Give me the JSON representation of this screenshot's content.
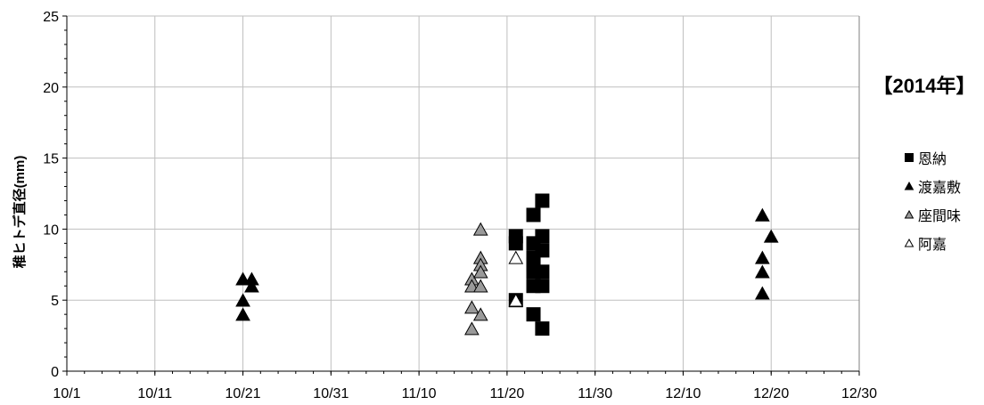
{
  "chart_data": {
    "type": "scatter",
    "title": "【2014年】",
    "ylabel": "稚ヒトデ直径(mm)",
    "xlabel": "",
    "x_axis_type": "date",
    "x_year": 2014,
    "xlim": [
      "10/1",
      "12/30"
    ],
    "ylim": [
      0,
      25
    ],
    "x_ticks": [
      "10/1",
      "10/11",
      "10/21",
      "10/31",
      "11/10",
      "11/20",
      "11/30",
      "12/10",
      "12/20",
      "12/30"
    ],
    "y_ticks": [
      "0",
      "5",
      "10",
      "15",
      "20",
      "25"
    ],
    "grid": true,
    "legend_position": "right",
    "series": [
      {
        "name": "恩納",
        "marker": "square",
        "color": "#000000",
        "stroke": "#000000",
        "points": [
          {
            "x": "11/21",
            "y": 9.5
          },
          {
            "x": "11/21",
            "y": 9
          },
          {
            "x": "11/21",
            "y": 5
          },
          {
            "x": "11/23",
            "y": 11
          },
          {
            "x": "11/23",
            "y": 9
          },
          {
            "x": "11/23",
            "y": 8
          },
          {
            "x": "11/23",
            "y": 7.5
          },
          {
            "x": "11/23",
            "y": 7
          },
          {
            "x": "11/23",
            "y": 6
          },
          {
            "x": "11/23",
            "y": 4
          },
          {
            "x": "11/24",
            "y": 12
          },
          {
            "x": "11/24",
            "y": 9.5
          },
          {
            "x": "11/24",
            "y": 8.5
          },
          {
            "x": "11/24",
            "y": 7
          },
          {
            "x": "11/24",
            "y": 6
          },
          {
            "x": "11/24",
            "y": 3
          }
        ]
      },
      {
        "name": "渡嘉敷",
        "marker": "triangle",
        "color": "#000000",
        "stroke": "#000000",
        "points": [
          {
            "x": "10/21",
            "y": 6.5
          },
          {
            "x": "10/21",
            "y": 5
          },
          {
            "x": "10/21",
            "y": 4
          },
          {
            "x": "10/22",
            "y": 6.5
          },
          {
            "x": "10/22",
            "y": 6
          },
          {
            "x": "12/19",
            "y": 11
          },
          {
            "x": "12/19",
            "y": 8
          },
          {
            "x": "12/19",
            "y": 7
          },
          {
            "x": "12/19",
            "y": 5.5
          },
          {
            "x": "12/20",
            "y": 9.5
          }
        ]
      },
      {
        "name": "座間味",
        "marker": "triangle",
        "color": "#9a9a9a",
        "stroke": "#000000",
        "points": [
          {
            "x": "11/16",
            "y": 6.5
          },
          {
            "x": "11/16",
            "y": 6
          },
          {
            "x": "11/16",
            "y": 4.5
          },
          {
            "x": "11/16",
            "y": 3
          },
          {
            "x": "11/17",
            "y": 10
          },
          {
            "x": "11/17",
            "y": 8
          },
          {
            "x": "11/17",
            "y": 7.5
          },
          {
            "x": "11/17",
            "y": 7
          },
          {
            "x": "11/17",
            "y": 6
          },
          {
            "x": "11/17",
            "y": 4
          }
        ]
      },
      {
        "name": "阿嘉",
        "marker": "triangle",
        "color": "#ffffff",
        "stroke": "#000000",
        "points": [
          {
            "x": "11/21",
            "y": 8
          },
          {
            "x": "11/21",
            "y": 5
          }
        ]
      }
    ]
  }
}
